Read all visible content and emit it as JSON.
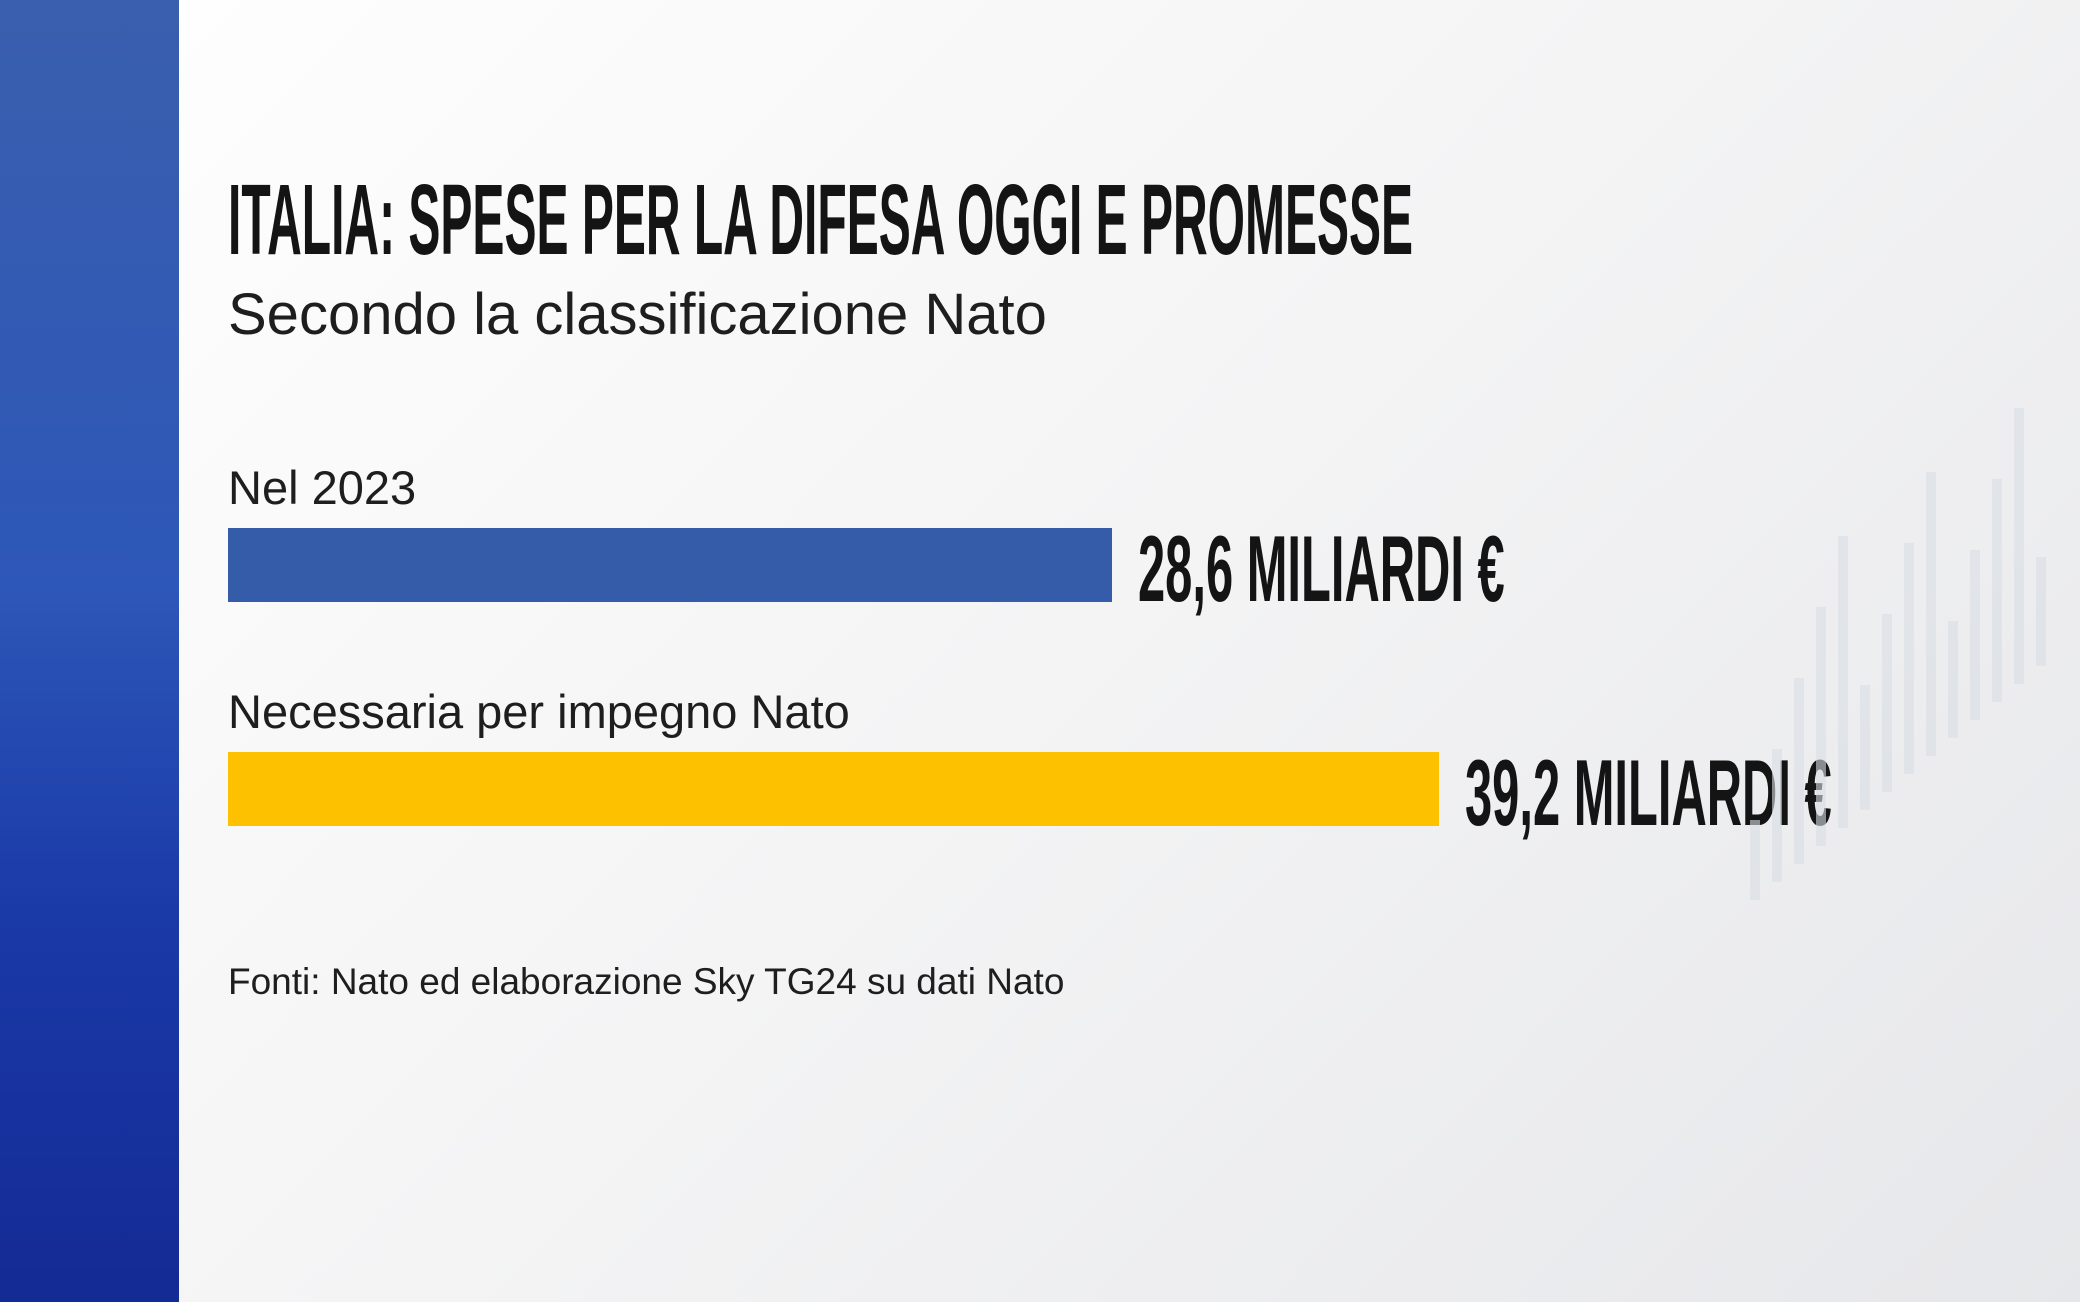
{
  "chart_data": {
    "type": "bar",
    "orientation": "horizontal",
    "title": "ITALIA: SPESE PER LA DIFESA OGGI E PROMESSE",
    "subtitle": "Secondo la classificazione Nato",
    "categories": [
      "Nel 2023",
      "Necessaria per impegno Nato"
    ],
    "values": [
      28.6,
      39.2
    ],
    "value_labels": [
      "28,6 MILIARDI €",
      "39,2 MILIARDI €"
    ],
    "unit": "miliardi €",
    "colors": [
      "#345ca8",
      "#fdc100"
    ],
    "grid": false,
    "source": "Fonti: Nato ed elaborazione Sky TG24 su dati Nato"
  },
  "colors": {
    "side_panel": "#2d57b8"
  }
}
